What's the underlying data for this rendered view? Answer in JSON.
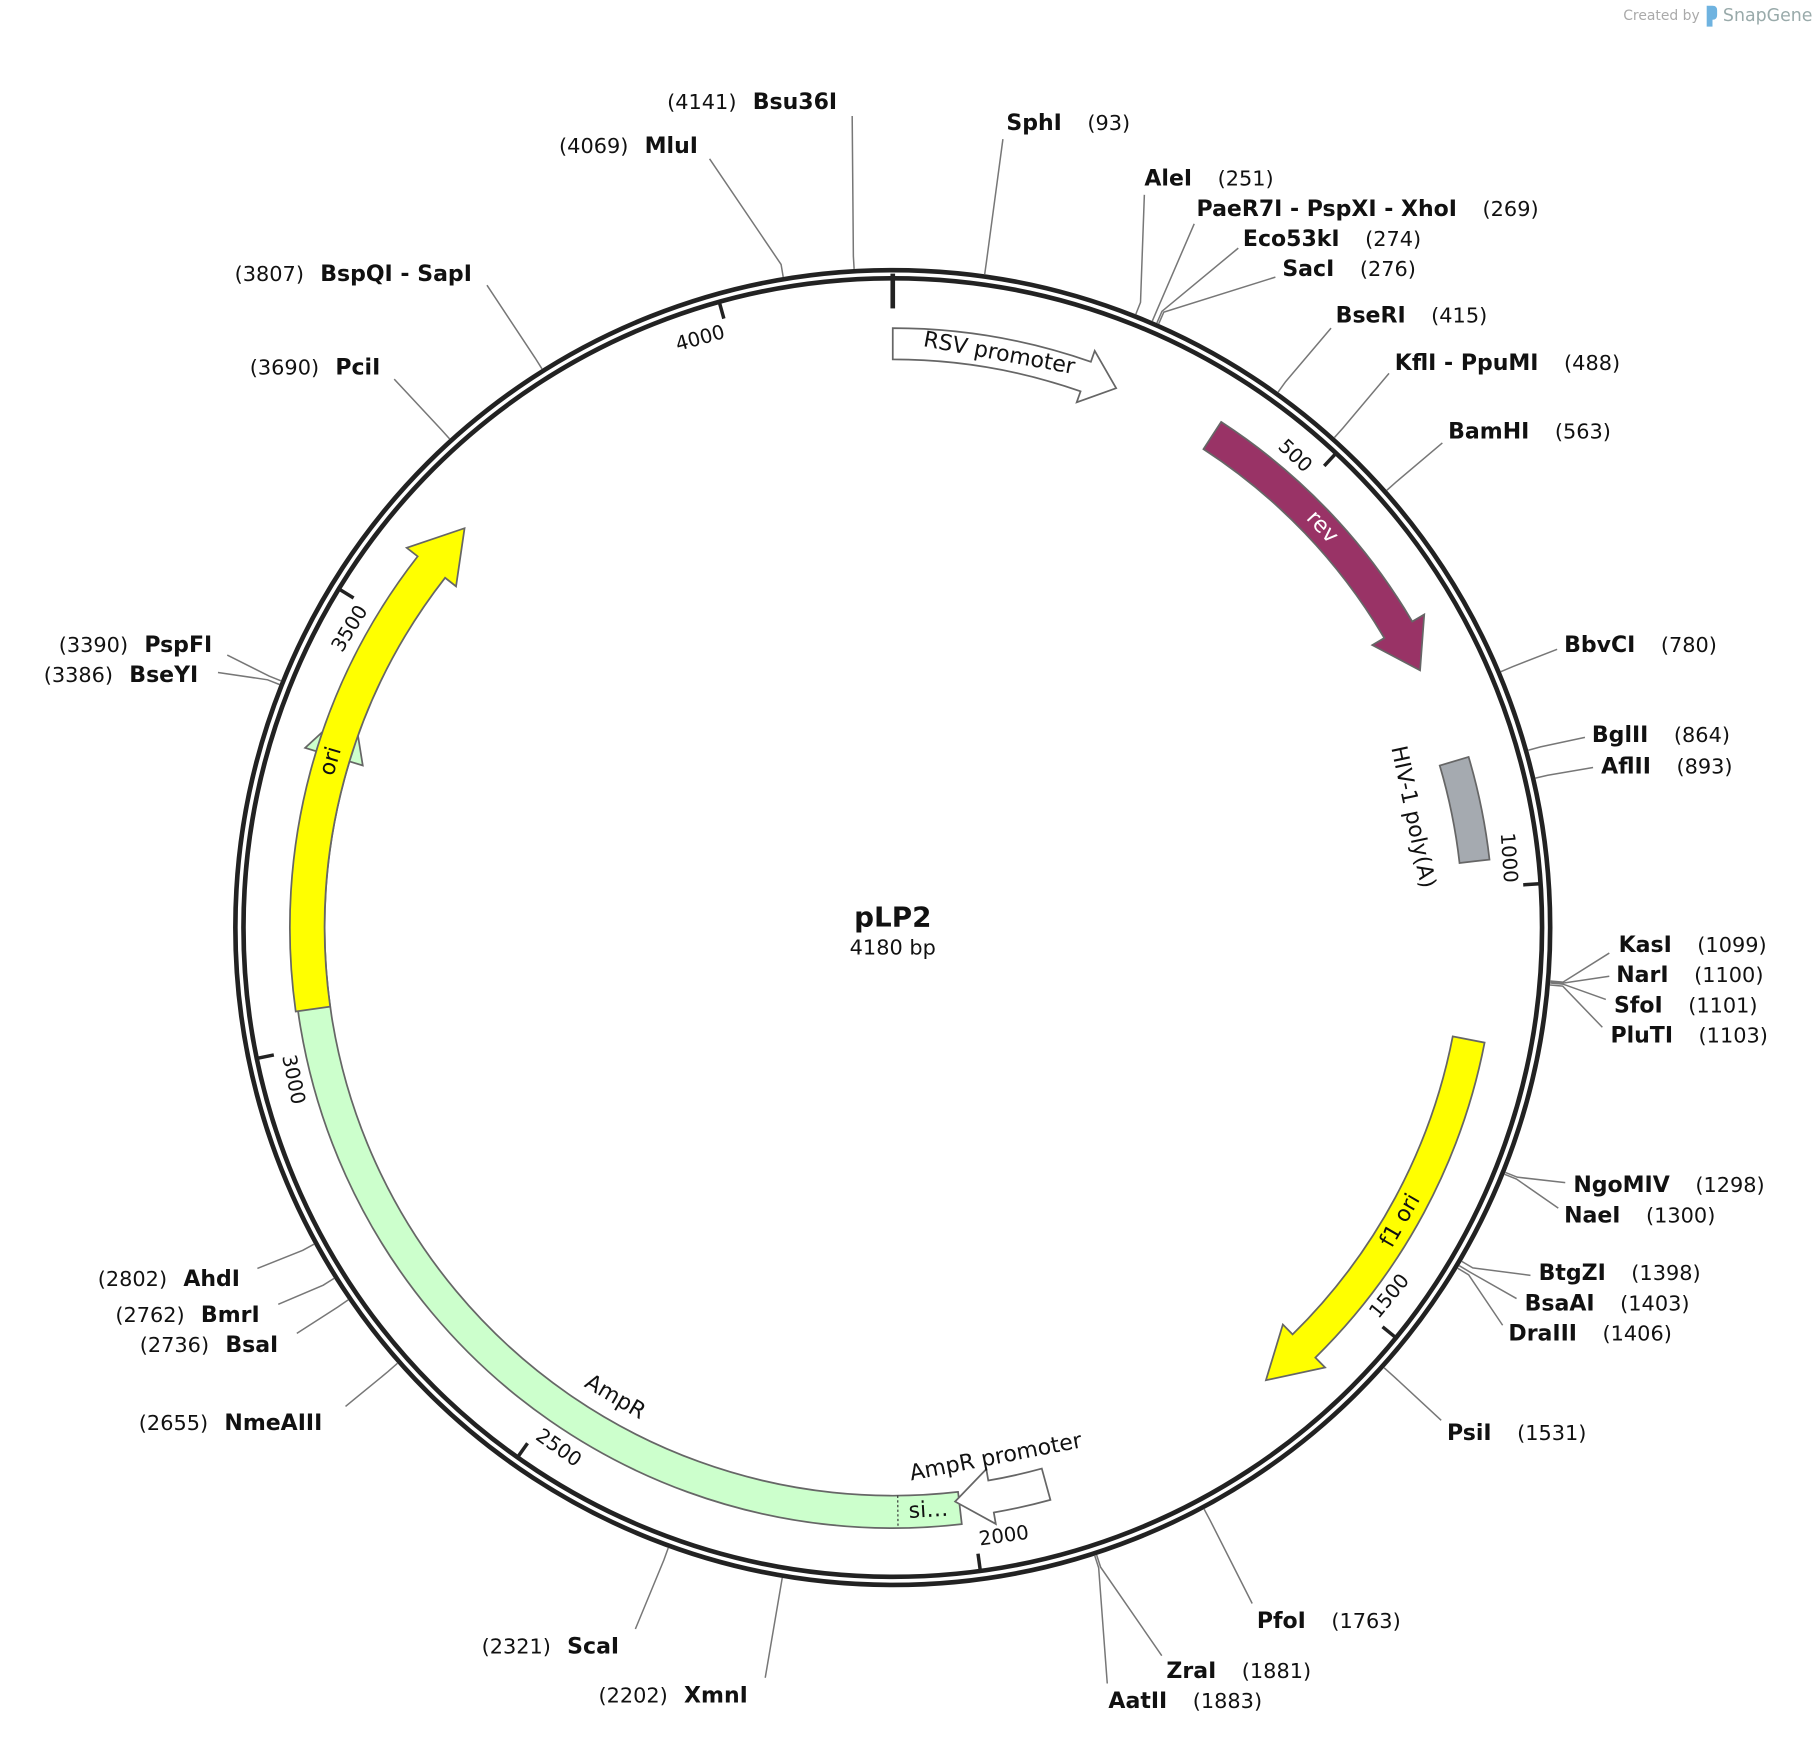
{
  "header": {
    "credit": "Created by",
    "brand": "SnapGene"
  },
  "plasmid": {
    "name": "pLP2",
    "length": 4180,
    "length_label": "4180 bp"
  },
  "ticks": [
    500,
    1000,
    1500,
    2000,
    2500,
    3000,
    3500,
    4000
  ],
  "features": [
    {
      "label": "RSV promoter"
    },
    {
      "label": "rev"
    },
    {
      "label": "HIV-1 poly(A)"
    },
    {
      "label": "f1 ori"
    },
    {
      "label": "AmpR"
    },
    {
      "label": "si…"
    },
    {
      "label": "AmpR promoter"
    },
    {
      "label": "ori"
    }
  ],
  "sites": [
    {
      "name": "SphI",
      "position": 93,
      "position_label": "(93)"
    },
    {
      "name": "AleI",
      "position": 251,
      "position_label": "(251)"
    },
    {
      "name": "PaeR7I - PspXI - XhoI",
      "position": 269,
      "position_label": "(269)"
    },
    {
      "name": "Eco53kI",
      "position": 274,
      "position_label": "(274)"
    },
    {
      "name": "SacI",
      "position": 276,
      "position_label": "(276)"
    },
    {
      "name": "BseRI",
      "position": 415,
      "position_label": "(415)"
    },
    {
      "name": "KflI - PpuMI",
      "position": 488,
      "position_label": "(488)"
    },
    {
      "name": "BamHI",
      "position": 563,
      "position_label": "(563)"
    },
    {
      "name": "BbvCI",
      "position": 780,
      "position_label": "(780)"
    },
    {
      "name": "BglII",
      "position": 864,
      "position_label": "(864)"
    },
    {
      "name": "AflII",
      "position": 893,
      "position_label": "(893)"
    },
    {
      "name": "KasI",
      "position": 1099,
      "position_label": "(1099)"
    },
    {
      "name": "NarI",
      "position": 1100,
      "position_label": "(1100)"
    },
    {
      "name": "SfoI",
      "position": 1101,
      "position_label": "(1101)"
    },
    {
      "name": "PluTI",
      "position": 1103,
      "position_label": "(1103)"
    },
    {
      "name": "NgoMIV",
      "position": 1298,
      "position_label": "(1298)"
    },
    {
      "name": "NaeI",
      "position": 1300,
      "position_label": "(1300)"
    },
    {
      "name": "BtgZI",
      "position": 1398,
      "position_label": "(1398)"
    },
    {
      "name": "BsaAI",
      "position": 1403,
      "position_label": "(1403)"
    },
    {
      "name": "DraIII",
      "position": 1406,
      "position_label": "(1406)"
    },
    {
      "name": "PsiI",
      "position": 1531,
      "position_label": "(1531)"
    },
    {
      "name": "PfoI",
      "position": 1763,
      "position_label": "(1763)"
    },
    {
      "name": "ZraI",
      "position": 1881,
      "position_label": "(1881)"
    },
    {
      "name": "AatII",
      "position": 1883,
      "position_label": "(1883)"
    },
    {
      "name": "XmnI",
      "position": 2202,
      "position_label": "(2202)"
    },
    {
      "name": "ScaI",
      "position": 2321,
      "position_label": "(2321)"
    },
    {
      "name": "NmeAIII",
      "position": 2655,
      "position_label": "(2655)"
    },
    {
      "name": "BsaI",
      "position": 2736,
      "position_label": "(2736)"
    },
    {
      "name": "BmrI",
      "position": 2762,
      "position_label": "(2762)"
    },
    {
      "name": "AhdI",
      "position": 2802,
      "position_label": "(2802)"
    },
    {
      "name": "BseYI",
      "position": 3386,
      "position_label": "(3386)"
    },
    {
      "name": "PspFI",
      "position": 3390,
      "position_label": "(3390)"
    },
    {
      "name": "PciI",
      "position": 3690,
      "position_label": "(3690)"
    },
    {
      "name": "BspQI - SapI",
      "position": 3807,
      "position_label": "(3807)"
    },
    {
      "name": "MluI",
      "position": 4069,
      "position_label": "(4069)"
    },
    {
      "name": "Bsu36I",
      "position": 4141,
      "position_label": "(4141)"
    }
  ]
}
